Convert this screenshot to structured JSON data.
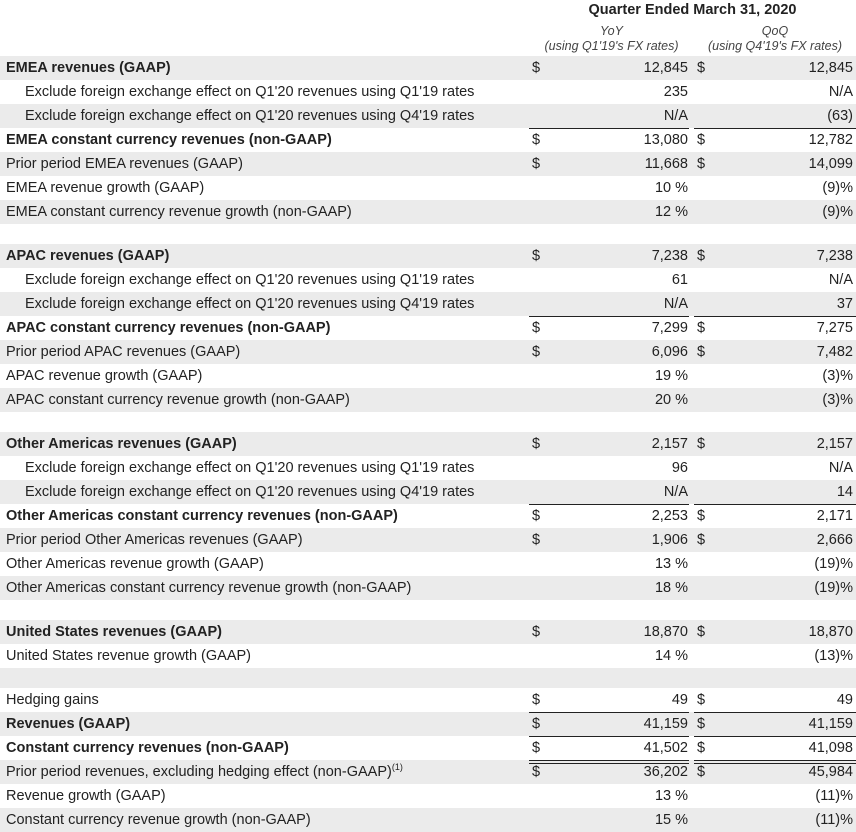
{
  "header": {
    "period": "Quarter Ended March 31, 2020",
    "yoy_title": "YoY",
    "yoy_sub": "(using Q1'19's FX rates)",
    "qoq_title": "QoQ",
    "qoq_sub": "(using Q4'19's FX rates)"
  },
  "rows": {
    "emea_rev": {
      "label": "EMEA revenues (GAAP)",
      "cy": "$",
      "y": "12,845",
      "cq": "$",
      "q": "12,845"
    },
    "emea_fx_q1": {
      "label": "Exclude foreign exchange effect on Q1'20 revenues using Q1'19 rates",
      "y": "235",
      "q": "N/A"
    },
    "emea_fx_q4": {
      "label": "Exclude foreign exchange effect on Q1'20 revenues using Q4'19 rates",
      "y": "N/A",
      "q": "(63)"
    },
    "emea_cc": {
      "label": "EMEA constant currency revenues (non-GAAP)",
      "cy": "$",
      "y": "13,080",
      "cq": "$",
      "q": "12,782"
    },
    "emea_prior": {
      "label": "Prior period EMEA revenues (GAAP)",
      "cy": "$",
      "y": "11,668",
      "cq": "$",
      "q": "14,099"
    },
    "emea_growth": {
      "label": "EMEA revenue growth (GAAP)",
      "y": "10 %",
      "q": "(9)%"
    },
    "emea_cc_growth": {
      "label": "EMEA constant currency revenue growth (non-GAAP)",
      "y": "12 %",
      "q": "(9)%"
    },
    "apac_rev": {
      "label": "APAC revenues (GAAP)",
      "cy": "$",
      "y": "7,238",
      "cq": "$",
      "q": "7,238"
    },
    "apac_fx_q1": {
      "label": "Exclude foreign exchange effect on Q1'20 revenues using Q1'19 rates",
      "y": "61",
      "q": "N/A"
    },
    "apac_fx_q4": {
      "label": "Exclude foreign exchange effect on Q1'20 revenues using Q4'19 rates",
      "y": "N/A",
      "q": "37"
    },
    "apac_cc": {
      "label": "APAC constant currency revenues (non-GAAP)",
      "cy": "$",
      "y": "7,299",
      "cq": "$",
      "q": "7,275"
    },
    "apac_prior": {
      "label": "Prior period APAC revenues (GAAP)",
      "cy": "$",
      "y": "6,096",
      "cq": "$",
      "q": "7,482"
    },
    "apac_growth": {
      "label": "APAC revenue growth (GAAP)",
      "y": "19 %",
      "q": "(3)%"
    },
    "apac_cc_growth": {
      "label": "APAC constant currency revenue growth (non-GAAP)",
      "y": "20 %",
      "q": "(3)%"
    },
    "oa_rev": {
      "label": "Other Americas revenues (GAAP)",
      "cy": "$",
      "y": "2,157",
      "cq": "$",
      "q": "2,157"
    },
    "oa_fx_q1": {
      "label": "Exclude foreign exchange effect on Q1'20 revenues using Q1'19 rates",
      "y": "96",
      "q": "N/A"
    },
    "oa_fx_q4": {
      "label": "Exclude foreign exchange effect on Q1'20 revenues using Q4'19 rates",
      "y": "N/A",
      "q": "14"
    },
    "oa_cc": {
      "label": "Other Americas constant currency revenues (non-GAAP)",
      "cy": "$",
      "y": "2,253",
      "cq": "$",
      "q": "2,171"
    },
    "oa_prior": {
      "label": "Prior period Other Americas revenues (GAAP)",
      "cy": "$",
      "y": "1,906",
      "cq": "$",
      "q": "2,666"
    },
    "oa_growth": {
      "label": "Other Americas revenue growth (GAAP)",
      "y": "13 %",
      "q": "(19)%"
    },
    "oa_cc_growth": {
      "label": "Other Americas constant currency revenue growth (non-GAAP)",
      "y": "18 %",
      "q": "(19)%"
    },
    "us_rev": {
      "label": "United States revenues (GAAP)",
      "cy": "$",
      "y": "18,870",
      "cq": "$",
      "q": "18,870"
    },
    "us_growth": {
      "label": "United States revenue growth (GAAP)",
      "y": "14 %",
      "q": "(13)%"
    },
    "hedging": {
      "label": "Hedging gains",
      "cy": "$",
      "y": "49",
      "cq": "$",
      "q": "49"
    },
    "rev": {
      "label": "Revenues (GAAP)",
      "cy": "$",
      "y": "41,159",
      "cq": "$",
      "q": "41,159"
    },
    "cc_rev": {
      "label": "Constant currency revenues (non-GAAP)",
      "cy": "$",
      "y": "41,502",
      "cq": "$",
      "q": "41,098"
    },
    "prior_rev": {
      "label": "Prior period revenues, excluding hedging effect (non-GAAP)",
      "footnote": "(1)",
      "cy": "$",
      "y": "36,202",
      "cq": "$",
      "q": "45,984"
    },
    "rev_growth": {
      "label": "Revenue growth (GAAP)",
      "y": "13 %",
      "q": "(11)%"
    },
    "cc_growth": {
      "label": "Constant currency revenue growth (non-GAAP)",
      "y": "15 %",
      "q": "(11)%"
    }
  }
}
